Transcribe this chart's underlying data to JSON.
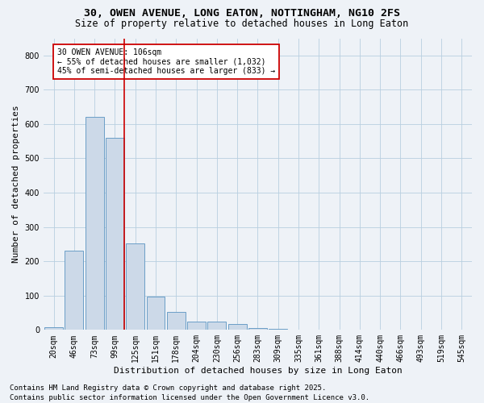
{
  "title1": "30, OWEN AVENUE, LONG EATON, NOTTINGHAM, NG10 2FS",
  "title2": "Size of property relative to detached houses in Long Eaton",
  "xlabel": "Distribution of detached houses by size in Long Eaton",
  "ylabel": "Number of detached properties",
  "categories": [
    "20sqm",
    "46sqm",
    "73sqm",
    "99sqm",
    "125sqm",
    "151sqm",
    "178sqm",
    "204sqm",
    "230sqm",
    "256sqm",
    "283sqm",
    "309sqm",
    "335sqm",
    "361sqm",
    "388sqm",
    "414sqm",
    "440sqm",
    "466sqm",
    "493sqm",
    "519sqm",
    "545sqm"
  ],
  "values": [
    8,
    232,
    620,
    560,
    252,
    97,
    53,
    25,
    25,
    18,
    5,
    2,
    0,
    0,
    0,
    0,
    0,
    0,
    0,
    0,
    0
  ],
  "bar_color": "#ccd9e8",
  "bar_edge_color": "#6b9ec7",
  "grid_color": "#b8cfe0",
  "background_color": "#eef2f7",
  "marker_line_color": "#cc0000",
  "annotation_text": "30 OWEN AVENUE: 106sqm\n← 55% of detached houses are smaller (1,032)\n45% of semi-detached houses are larger (833) →",
  "annotation_box_color": "#ffffff",
  "annotation_box_edge": "#cc0000",
  "footer1": "Contains HM Land Registry data © Crown copyright and database right 2025.",
  "footer2": "Contains public sector information licensed under the Open Government Licence v3.0.",
  "ylim": [
    0,
    850
  ],
  "title_fontsize": 9.5,
  "subtitle_fontsize": 8.5,
  "axis_label_fontsize": 8,
  "tick_fontsize": 7,
  "annotation_fontsize": 7,
  "footer_fontsize": 6.5
}
